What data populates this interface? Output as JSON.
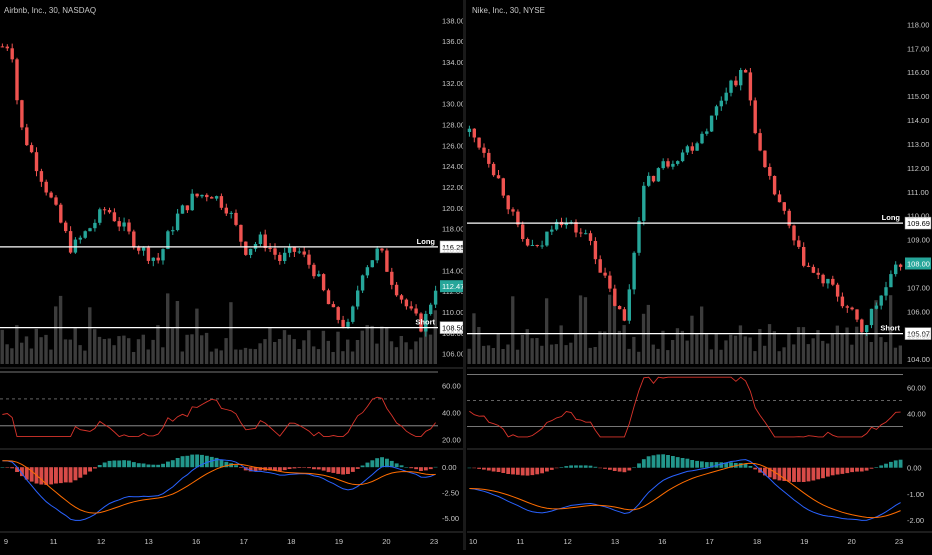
{
  "colors": {
    "background": "#000000",
    "up": "#26a69a",
    "down": "#ef5350",
    "volume": "#555555",
    "level_line": "#ffffff",
    "axis_text": "#c8c8c8",
    "rsi": "#d9342b",
    "rsi_band": "#9e9e9e",
    "macd": "#2962ff",
    "signal": "#ff6d00",
    "hist_up": "#26a69a",
    "hist_down": "#ef5350",
    "divider": "#3a3a3a"
  },
  "panels": [
    {
      "title": "Airbnb, Inc., 30, NASDAQ",
      "price_axis": [
        "138.00",
        "136.00",
        "134.00",
        "132.00",
        "130.00",
        "128.00",
        "126.00",
        "124.00",
        "122.00",
        "120.00",
        "118.00",
        "116.00",
        "114.00",
        "112.00",
        "110.00",
        "108.00",
        "106.00"
      ],
      "price_range": [
        105,
        139
      ],
      "current_price": "112.47",
      "levels": [
        {
          "label": "Long",
          "price": 116.25,
          "price_text": "116.25"
        },
        {
          "label": "Short",
          "price": 108.5,
          "price_text": "108.50"
        }
      ],
      "rsi_axis": [
        "60.00",
        "40.00",
        "20.00"
      ],
      "rsi_range": [
        15,
        70
      ],
      "macd_axis": [
        "0.00",
        "-2.50",
        "-5.00"
      ],
      "macd_range": [
        -6.0,
        1.5
      ],
      "x_labels": [
        "9",
        "11",
        "12",
        "13",
        "16",
        "17",
        "18",
        "19",
        "20",
        "23"
      ],
      "start_price": 135.5,
      "waypoints": [
        [
          0,
          135.5
        ],
        [
          0.02,
          135.8
        ],
        [
          0.04,
          128
        ],
        [
          0.08,
          124
        ],
        [
          0.12,
          120
        ],
        [
          0.16,
          116
        ],
        [
          0.2,
          118
        ],
        [
          0.24,
          120
        ],
        [
          0.28,
          118
        ],
        [
          0.32,
          116
        ],
        [
          0.36,
          115
        ],
        [
          0.4,
          119
        ],
        [
          0.44,
          121
        ],
        [
          0.48,
          121.5
        ],
        [
          0.52,
          120
        ],
        [
          0.56,
          116
        ],
        [
          0.6,
          117
        ],
        [
          0.64,
          115
        ],
        [
          0.68,
          116
        ],
        [
          0.72,
          114
        ],
        [
          0.76,
          110
        ],
        [
          0.8,
          108.4
        ],
        [
          0.83,
          114
        ],
        [
          0.87,
          116
        ],
        [
          0.9,
          113
        ],
        [
          0.94,
          110
        ],
        [
          0.97,
          108.5
        ],
        [
          1.0,
          112.5
        ]
      ],
      "seed": 7
    },
    {
      "title": "Nike, Inc., 30, NYSE",
      "price_axis": [
        "118.00",
        "117.00",
        "116.00",
        "115.00",
        "114.00",
        "113.00",
        "112.00",
        "111.00",
        "110.00",
        "109.00",
        "108.00",
        "107.00",
        "106.00",
        "105.00",
        "104.00"
      ],
      "price_range": [
        103.8,
        118.6
      ],
      "current_price": "108.00",
      "levels": [
        {
          "label": "Long",
          "price": 109.69,
          "price_text": "109.69"
        },
        {
          "label": "Short",
          "price": 105.07,
          "price_text": "105.07"
        }
      ],
      "rsi_axis": [
        "60.00",
        "40.00"
      ],
      "rsi_range": [
        15,
        72
      ],
      "macd_axis": [
        "0.00",
        "-1.00",
        "-2.00"
      ],
      "macd_range": [
        -2.3,
        0.6
      ],
      "x_labels": [
        "10",
        "11",
        "12",
        "13",
        "16",
        "17",
        "18",
        "19",
        "20",
        "23"
      ],
      "start_price": 113.5,
      "waypoints": [
        [
          0,
          113.5
        ],
        [
          0.04,
          112.6
        ],
        [
          0.08,
          111
        ],
        [
          0.12,
          109
        ],
        [
          0.16,
          108.5
        ],
        [
          0.2,
          110
        ],
        [
          0.24,
          109.5
        ],
        [
          0.28,
          109
        ],
        [
          0.32,
          107
        ],
        [
          0.36,
          105.5
        ],
        [
          0.4,
          111
        ],
        [
          0.44,
          112
        ],
        [
          0.48,
          112.5
        ],
        [
          0.52,
          113
        ],
        [
          0.56,
          114
        ],
        [
          0.6,
          115.5
        ],
        [
          0.64,
          116
        ],
        [
          0.66,
          114
        ],
        [
          0.68,
          112
        ],
        [
          0.72,
          110.5
        ],
        [
          0.76,
          108.5
        ],
        [
          0.8,
          107.5
        ],
        [
          0.84,
          107
        ],
        [
          0.88,
          106
        ],
        [
          0.91,
          105.2
        ],
        [
          0.95,
          106.5
        ],
        [
          1.0,
          108
        ]
      ],
      "seed": 13
    }
  ]
}
